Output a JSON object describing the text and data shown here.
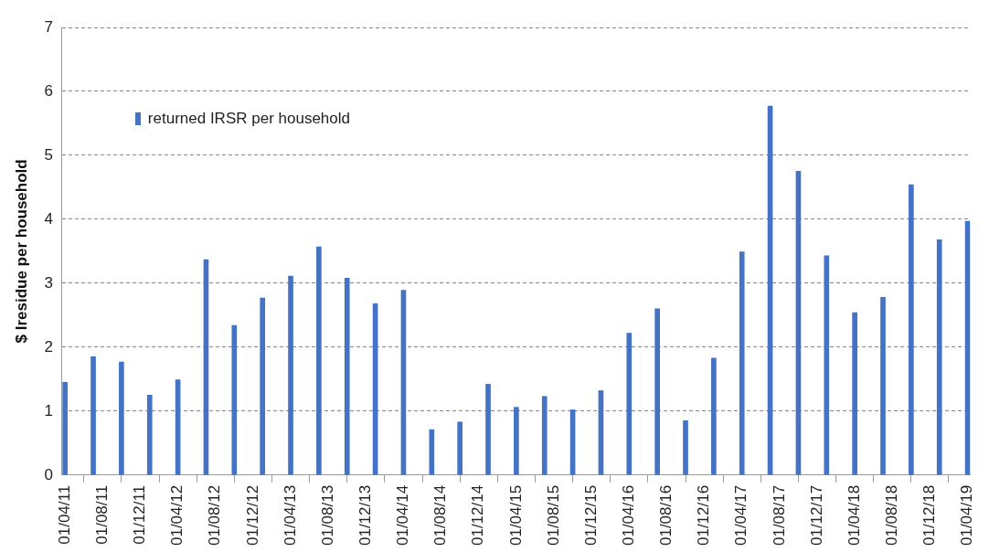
{
  "chart_data": {
    "type": "bar",
    "ylabel": "$ Iresidue per household",
    "legend": "top left",
    "grid": "y",
    "x": [
      "2011-04",
      "2011-07",
      "2011-10",
      "2012-01",
      "2012-04",
      "2012-07",
      "2012-10",
      "2013-01",
      "2013-04",
      "2013-07",
      "2013-10",
      "2014-01",
      "2014-04",
      "2014-07",
      "2014-10",
      "2015-01",
      "2015-04",
      "2015-07",
      "2015-10",
      "2016-01",
      "2016-04",
      "2016-07",
      "2016-10",
      "2017-01",
      "2017-04",
      "2017-07",
      "2017-10",
      "2018-01",
      "2018-04",
      "2018-07",
      "2018-10",
      "2019-01",
      "2019-04"
    ],
    "series": [
      {
        "name": "returned IRSR per household",
        "color": "#4472c4",
        "values": [
          1.45,
          1.85,
          1.77,
          1.25,
          1.49,
          3.37,
          2.34,
          2.77,
          3.11,
          3.57,
          3.08,
          2.68,
          2.89,
          0.71,
          0.83,
          1.42,
          1.06,
          1.23,
          1.02,
          1.32,
          2.22,
          2.6,
          0.85,
          1.83,
          3.49,
          5.77,
          4.75,
          3.43,
          2.54,
          2.78,
          4.54,
          3.68,
          3.97
        ]
      }
    ],
    "ylim": [
      0,
      7
    ],
    "yticks": [
      0,
      1,
      2,
      3,
      4,
      5,
      6,
      7
    ],
    "xlim": [
      "2011-03-22",
      "2019-04-10"
    ],
    "xticks": [
      {
        "value": "2011-04",
        "label": "01/04/11"
      },
      {
        "value": "2011-08",
        "label": "01/08/11"
      },
      {
        "value": "2011-12",
        "label": "01/12/11"
      },
      {
        "value": "2012-04",
        "label": "01/04/12"
      },
      {
        "value": "2012-08",
        "label": "01/08/12"
      },
      {
        "value": "2012-12",
        "label": "01/12/12"
      },
      {
        "value": "2013-04",
        "label": "01/04/13"
      },
      {
        "value": "2013-08",
        "label": "01/08/13"
      },
      {
        "value": "2013-12",
        "label": "01/12/13"
      },
      {
        "value": "2014-04",
        "label": "01/04/14"
      },
      {
        "value": "2014-08",
        "label": "01/08/14"
      },
      {
        "value": "2014-12",
        "label": "01/12/14"
      },
      {
        "value": "2015-04",
        "label": "01/04/15"
      },
      {
        "value": "2015-08",
        "label": "01/08/15"
      },
      {
        "value": "2015-12",
        "label": "01/12/15"
      },
      {
        "value": "2016-04",
        "label": "01/04/16"
      },
      {
        "value": "2016-08",
        "label": "01/08/16"
      },
      {
        "value": "2016-12",
        "label": "01/12/16"
      },
      {
        "value": "2017-04",
        "label": "01/04/17"
      },
      {
        "value": "2017-08",
        "label": "01/08/17"
      },
      {
        "value": "2017-12",
        "label": "01/12/17"
      },
      {
        "value": "2018-04",
        "label": "01/04/18"
      },
      {
        "value": "2018-08",
        "label": "01/08/18"
      },
      {
        "value": "2018-12",
        "label": "01/12/18"
      },
      {
        "value": "2019-04",
        "label": "01/04/19"
      }
    ]
  }
}
